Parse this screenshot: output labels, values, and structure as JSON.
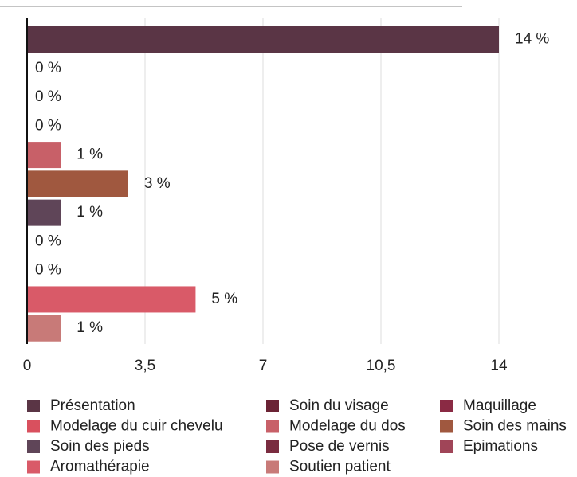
{
  "chart_data": {
    "type": "bar",
    "orientation": "horizontal",
    "series": [
      {
        "name": "Présentation",
        "color": "#5a3545",
        "values": [
          14
        ],
        "value_labels": [
          "14 %"
        ]
      },
      {
        "name": "Soin du visage",
        "color": "#6b2335",
        "values": [
          0
        ],
        "value_labels": [
          "0 %"
        ]
      },
      {
        "name": "Maquillage",
        "color": "#8a2a44",
        "values": [
          0
        ],
        "value_labels": [
          "0 %"
        ]
      },
      {
        "name": "Modelage du cuir chevelu",
        "color": "#d9505e",
        "values": [
          0
        ],
        "value_labels": [
          "0 %"
        ]
      },
      {
        "name": "Modelage du dos",
        "color": "#c86068",
        "values": [
          1
        ],
        "value_labels": [
          "1 %"
        ]
      },
      {
        "name": "Soin des mains",
        "color": "#a0583f",
        "values": [
          3
        ],
        "value_labels": [
          "3 %"
        ]
      },
      {
        "name": "Soin des pieds",
        "color": "#5f4558",
        "values": [
          1
        ],
        "value_labels": [
          "1 %"
        ]
      },
      {
        "name": "Pose de vernis",
        "color": "#7a2c40",
        "values": [
          0
        ],
        "value_labels": [
          "0 %"
        ]
      },
      {
        "name": "Epimations",
        "color": "#a04558",
        "values": [
          0
        ],
        "value_labels": [
          "0 %"
        ]
      },
      {
        "name": "Aromathérapie",
        "color": "#d95a68",
        "values": [
          5
        ],
        "value_labels": [
          "5 %"
        ]
      },
      {
        "name": "Soutien patient",
        "color": "#c87a78",
        "values": [
          1
        ],
        "value_labels": [
          "1 %"
        ]
      }
    ],
    "xlim": [
      0,
      14
    ],
    "xticks": [
      0,
      {
        "value": 3.5,
        "label": "3,5"
      },
      7,
      {
        "value": 10.5,
        "label": "10,5"
      },
      14
    ],
    "grid": true,
    "legend": "bottom"
  }
}
